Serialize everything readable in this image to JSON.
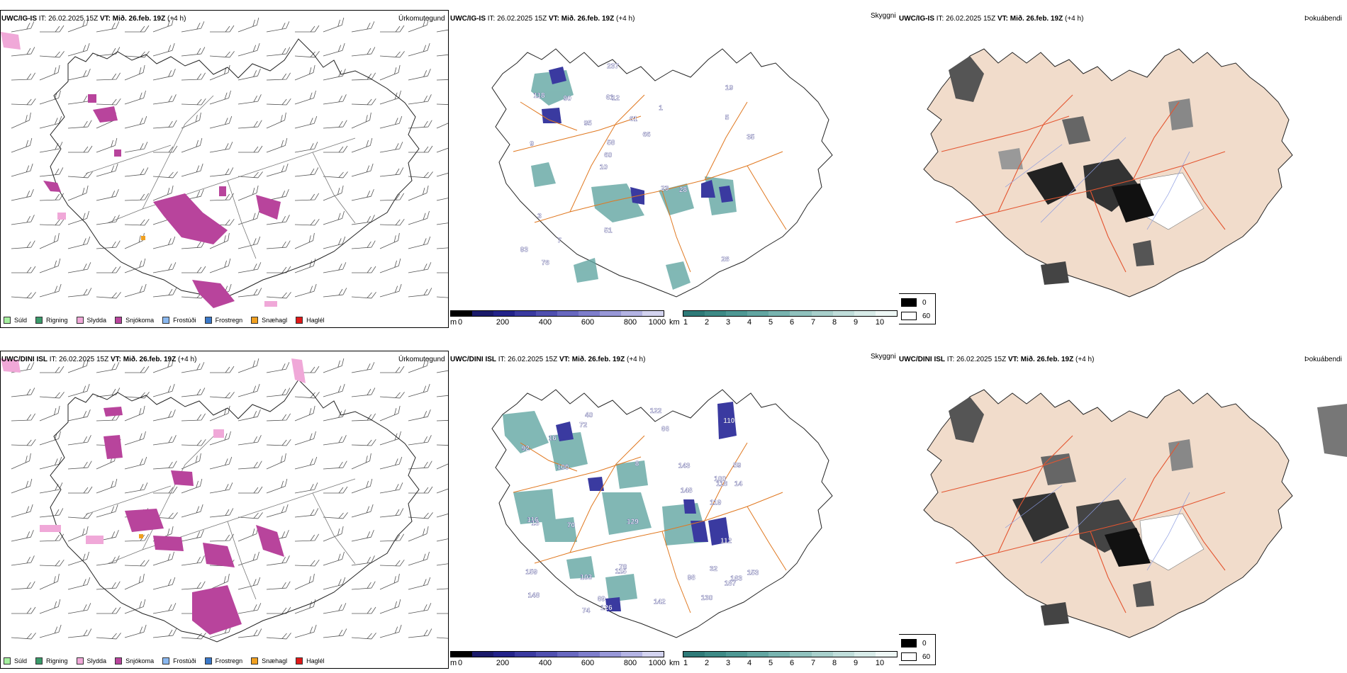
{
  "rows": [
    {
      "model": "UWC/IG-IS",
      "it_label": "IT:",
      "it_value": "26.02.2025 15Z",
      "vt_label": "VT:",
      "vt_value": "Mið. 26.feb. 19Z",
      "lead": "(+4 h)",
      "precip_title": "Úrkomutegund",
      "cloud_title": "Skyggni",
      "fog_title": "Þokuábendi"
    },
    {
      "model": "UWC/DINI ISL",
      "it_label": "IT:",
      "it_value": "26.02.2025 15Z",
      "vt_label": "VT:",
      "vt_value": "Mið. 26.feb. 19Z",
      "lead": "(+4 h)",
      "precip_title": "Úrkomutegund",
      "cloud_title": "Skyggni",
      "fog_title": "Þokuábendi"
    }
  ],
  "precip_legend": [
    {
      "label": "Súld",
      "color": "#a6f0a0"
    },
    {
      "label": "Rigning",
      "color": "#3a9a6a"
    },
    {
      "label": "Slydda",
      "color": "#f0a8d8"
    },
    {
      "label": "Snjókoma",
      "color": "#b8449c"
    },
    {
      "label": "Frostúði",
      "color": "#8ab8f0"
    },
    {
      "label": "Frostregn",
      "color": "#3a78c8"
    },
    {
      "label": "Snæhagl",
      "color": "#f0a020"
    },
    {
      "label": "Haglél",
      "color": "#e01818"
    }
  ],
  "cloudbase_scale": {
    "unit": "m",
    "ticks": [
      "0",
      "200",
      "400",
      "600",
      "800",
      "1000"
    ],
    "colors": [
      "#000000",
      "#1a1a6a",
      "#23238a",
      "#3a3aa0",
      "#5050b0",
      "#6868c0",
      "#7e7ecc",
      "#9898d8",
      "#b4b4e4",
      "#d4d4f0"
    ]
  },
  "visibility_scale": {
    "unit": "km",
    "ticks": [
      "1",
      "2",
      "3",
      "4",
      "5",
      "6",
      "7",
      "8",
      "9",
      "10"
    ],
    "colors": [
      "#2e7a78",
      "#3d8a86",
      "#4e9894",
      "#62a6a2",
      "#78b4b0",
      "#90c2be",
      "#a8d0cc",
      "#c0dedb",
      "#d8ece9",
      "#eef7f5"
    ]
  },
  "fog_legend": [
    {
      "label": "0",
      "color": "#000000"
    },
    {
      "label": "60",
      "color": "#ffffff"
    }
  ],
  "cloud_numbers_row1": [
    "28",
    "9",
    "19",
    "10",
    "1",
    "78",
    "61",
    "61",
    "3",
    "95",
    "93",
    "7",
    "12",
    "66",
    "28",
    "118",
    "237",
    "35",
    "23",
    "5",
    "60",
    "51",
    "58",
    "90"
  ],
  "cloud_numbers_row2": [
    "32",
    "59",
    "163",
    "8",
    "148",
    "40",
    "100",
    "103",
    "110",
    "100",
    "14",
    "92",
    "119",
    "126",
    "159",
    "16",
    "187",
    "72",
    "78",
    "118",
    "116",
    "13",
    "142",
    "148",
    "69",
    "115",
    "122",
    "66",
    "143",
    "153",
    "70",
    "98",
    "74",
    "129",
    "112",
    "130"
  ]
}
